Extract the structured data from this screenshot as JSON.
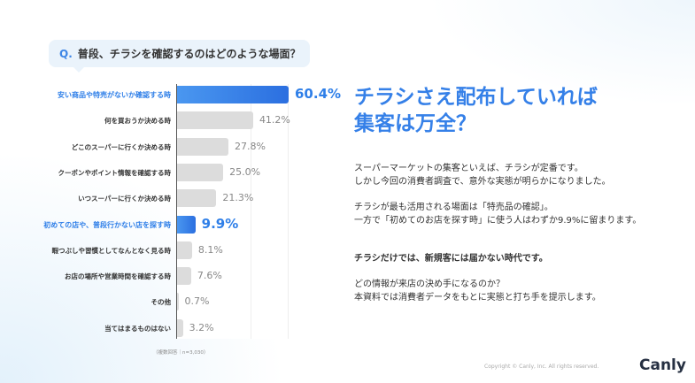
{
  "question": {
    "prefix": "Q.",
    "text": "普段、チラシを確認するのはどのような場面？"
  },
  "chart_data": {
    "type": "bar",
    "orientation": "horizontal",
    "categories": [
      "安い商品や特売がないか確認する時",
      "何を買おうか決める時",
      "どこのスーパーに行くか決める時",
      "クーポンやポイント情報を確認する時",
      "いつスーパーに行くか決める時",
      "初めての店や、普段行かない店を探す時",
      "暇つぶしや習慣としてなんとなく見る時",
      "お店の場所や営業時間を確認する時",
      "その他",
      "当てはまるものはない"
    ],
    "values": [
      60.4,
      41.2,
      27.8,
      25.0,
      21.3,
      9.9,
      8.1,
      7.6,
      0.7,
      3.2
    ],
    "labels": [
      "60.4%",
      "41.2%",
      "27.8%",
      "25.0%",
      "21.3%",
      "9.9%",
      "8.1%",
      "7.6%",
      "0.7%",
      "3.2%"
    ],
    "highlighted": [
      0,
      5
    ],
    "unit": "%",
    "colors": {
      "highlight": "#2f7fe8",
      "default": "#dcdcdc"
    },
    "note": "（複数回答｜n=3,030）"
  },
  "headline": {
    "line1": "チラシさえ配布していれば",
    "line2": "集客は万全？"
  },
  "body": {
    "p1": "スーパーマーケットの集客といえば、チラシが定番です。",
    "p2": "しかし今回の消費者調査で、意外な実態が明らかになりました。",
    "p3": "チラシが最も活用される場面は「特売品の確認」。",
    "p4": "一方で「初めてのお店を探す時」に使う人はわずか9.9%に留まります。",
    "p5": "チラシだけでは、新規客には届かない時代です。",
    "p6": "どの情報が来店の決め手になるのか？",
    "p7": "本資料では消費者データをもとに実態と打ち手を提示します。"
  },
  "footer": {
    "copyright": "Copyright © Canly, Inc. All rights reserved.",
    "logo": "Canly"
  }
}
